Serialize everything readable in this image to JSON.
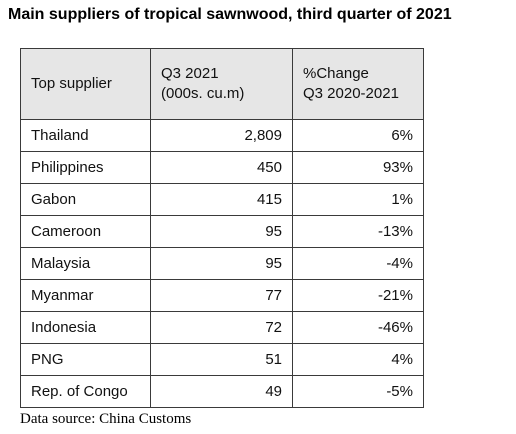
{
  "title": "Main suppliers of tropical sawnwood, third quarter of 2021",
  "table": {
    "headers": {
      "supplier": "Top supplier",
      "q3_line1": "Q3 2021",
      "q3_line2": "(000s. cu.m)",
      "change_line1": "%Change",
      "change_line2": "Q3 2020-2021"
    },
    "rows": [
      {
        "supplier": "Thailand",
        "q3": "2,809",
        "change": "6%"
      },
      {
        "supplier": "Philippines",
        "q3": "450",
        "change": "93%"
      },
      {
        "supplier": "Gabon",
        "q3": "415",
        "change": "1%"
      },
      {
        "supplier": "Cameroon",
        "q3": "95",
        "change": "-13%"
      },
      {
        "supplier": "Malaysia",
        "q3": "95",
        "change": "-4%"
      },
      {
        "supplier": "Myanmar",
        "q3": "77",
        "change": "-21%"
      },
      {
        "supplier": "Indonesia",
        "q3": "72",
        "change": "-46%"
      },
      {
        "supplier": "PNG",
        "q3": "51",
        "change": "4%"
      },
      {
        "supplier": "Rep. of Congo",
        "q3": "49",
        "change": "-5%"
      }
    ]
  },
  "source": "Data source: China Customs",
  "colors": {
    "header_background": "#e6e6e6",
    "border": "#3a3a3a"
  }
}
